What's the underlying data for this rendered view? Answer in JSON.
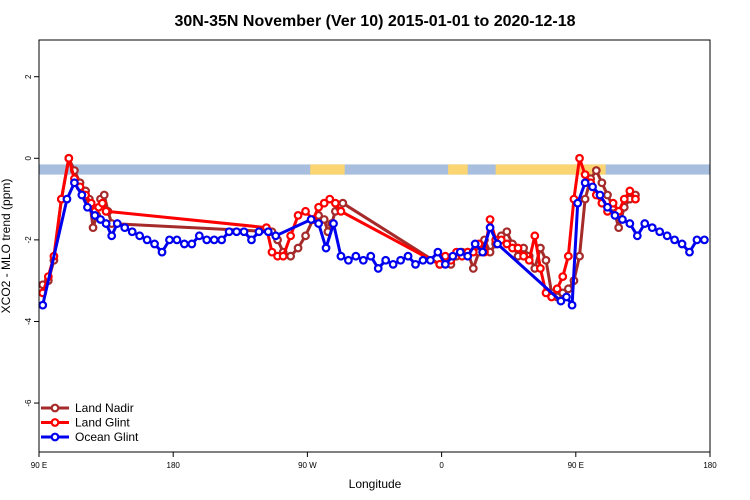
{
  "chart_data": {
    "type": "line",
    "title": "30N-35N November (Ver 10)   2015-01-01 to 2020-12-18",
    "xlabel": "Longitude",
    "ylabel": "XCO2 - MLO trend (ppm)",
    "xlim": [
      -90,
      270
    ],
    "ylim": [
      -7.2,
      2.9
    ],
    "x_ticks": [
      {
        "value": -90,
        "label": "90 E"
      },
      {
        "value": -18,
        "label": "180"
      },
      {
        "value": 54,
        "label": "90 W"
      },
      {
        "value": 126,
        "label": "0"
      },
      {
        "value": 198,
        "label": "90 E"
      },
      {
        "value": 270,
        "label": "180"
      }
    ],
    "y_ticks": [
      {
        "value": 2,
        "label": "2"
      },
      {
        "value": 0,
        "label": "0"
      },
      {
        "value": -2,
        "label": "-2"
      },
      {
        "value": -4,
        "label": "-4"
      },
      {
        "value": -6,
        "label": "-6"
      }
    ],
    "band": {
      "y_top": -0.15,
      "y_bottom": -0.4,
      "ocean_color": "#a8bedf",
      "land_color": "#fad571"
    },
    "land_segments": [
      [
        55.5,
        74
      ],
      [
        129.5,
        140
      ],
      [
        155,
        214
      ]
    ],
    "legend": {
      "position": "bottom-left"
    },
    "series": [
      {
        "name": "Land Nadir",
        "color": "#a52a2a",
        "x": [
          -88,
          -85,
          -82,
          -78,
          -74,
          -71,
          -68,
          -65,
          -63,
          -61,
          -59,
          -57,
          -55,
          -53,
          -51,
          35,
          38,
          41,
          45,
          49,
          53,
          57,
          60,
          63,
          65,
          67,
          69,
          71,
          73,
          125,
          128,
          131,
          134,
          137,
          140,
          143,
          146,
          149,
          152,
          155,
          158,
          161,
          164,
          167,
          170,
          173,
          176,
          179,
          182,
          185,
          188,
          191,
          194,
          197,
          200,
          203,
          206,
          209,
          212,
          215,
          218,
          221,
          224,
          227,
          230
        ],
        "y": [
          -3.1,
          -3.0,
          -2.5,
          -1.0,
          0.0,
          -0.3,
          -0.6,
          -0.8,
          -1.0,
          -1.7,
          -1.4,
          -1.0,
          -0.9,
          -1.3,
          -1.6,
          -1.8,
          -2.0,
          -2.3,
          -2.4,
          -2.2,
          -1.9,
          -1.5,
          -1.4,
          -1.5,
          -1.8,
          -1.6,
          -1.3,
          -1.2,
          -1.1,
          -2.6,
          -2.5,
          -2.6,
          -2.4,
          -2.3,
          -2.3,
          -2.7,
          -2.3,
          -2.0,
          -2.3,
          -2.1,
          -1.9,
          -1.8,
          -2.1,
          -2.4,
          -2.2,
          -2.4,
          -2.7,
          -2.2,
          -2.5,
          -3.3,
          -3.4,
          -3.3,
          -3.2,
          -3.0,
          -2.4,
          -1.0,
          -0.5,
          -0.3,
          -0.6,
          -0.9,
          -1.2,
          -1.7,
          -1.2,
          -1.0,
          -0.9
        ]
      },
      {
        "name": "Land Glint",
        "color": "#ff0000",
        "x": [
          -88,
          -85,
          -82,
          -78,
          -74,
          -71,
          -68,
          -65,
          -62,
          -60,
          -58,
          -56,
          -54,
          32,
          35,
          38,
          41,
          45,
          49,
          53,
          57,
          60,
          63,
          66,
          69,
          72,
          125,
          128,
          131,
          134,
          137,
          140,
          143,
          146,
          149,
          152,
          155,
          158,
          161,
          164,
          167,
          170,
          173,
          176,
          179,
          182,
          185,
          188,
          191,
          194,
          197,
          200,
          203,
          206,
          209,
          212,
          215,
          218,
          221,
          224,
          227,
          230
        ],
        "y": [
          -3.3,
          -2.9,
          -2.4,
          -1.0,
          0.0,
          -0.5,
          -0.7,
          -0.9,
          -1.1,
          -1.3,
          -1.2,
          -1.1,
          -1.3,
          -1.7,
          -2.3,
          -2.4,
          -2.4,
          -1.9,
          -1.4,
          -1.3,
          -1.5,
          -1.2,
          -1.1,
          -1.0,
          -1.1,
          -1.3,
          -2.6,
          -2.4,
          -2.5,
          -2.3,
          -2.4,
          -2.3,
          -2.3,
          -2.1,
          -2.3,
          -1.5,
          -2.0,
          -2.0,
          -2.1,
          -2.2,
          -2.2,
          -2.4,
          -2.5,
          -1.9,
          -2.7,
          -3.3,
          -3.4,
          -3.2,
          -2.9,
          -2.4,
          -1.0,
          0.0,
          -0.4,
          -0.6,
          -0.9,
          -1.1,
          -1.3,
          -1.1,
          -1.3,
          -1.0,
          -0.8,
          -1.0
        ]
      },
      {
        "name": "Ocean Glint",
        "color": "#0000ee",
        "x": [
          -88,
          -75,
          -71,
          -67,
          -64,
          -60,
          -57,
          -54,
          -51,
          -48,
          -44,
          -40,
          -36,
          -32,
          -28,
          -24,
          -20,
          -16,
          -12,
          -8,
          -4,
          0,
          4,
          8,
          12,
          16,
          20,
          24,
          28,
          33,
          37,
          56,
          60,
          64,
          68,
          72,
          76,
          80,
          84,
          88,
          92,
          96,
          100,
          104,
          108,
          112,
          116,
          120,
          124,
          128,
          132,
          136,
          140,
          144,
          148,
          152,
          156,
          190,
          193,
          196,
          199,
          203,
          207,
          211,
          215,
          219,
          223,
          227,
          231,
          235,
          239,
          243,
          247,
          251,
          255,
          259,
          263,
          267
        ],
        "y": [
          -3.6,
          -1.0,
          -0.6,
          -0.9,
          -1.2,
          -1.4,
          -1.5,
          -1.6,
          -1.9,
          -1.6,
          -1.7,
          -1.8,
          -1.9,
          -2.0,
          -2.1,
          -2.3,
          -2.0,
          -2.0,
          -2.1,
          -2.1,
          -1.9,
          -2.0,
          -2.0,
          -2.0,
          -1.8,
          -1.8,
          -1.8,
          -2.0,
          -1.8,
          -1.8,
          -1.9,
          -1.5,
          -1.6,
          -2.2,
          -1.6,
          -2.4,
          -2.5,
          -2.4,
          -2.5,
          -2.4,
          -2.7,
          -2.5,
          -2.6,
          -2.5,
          -2.4,
          -2.6,
          -2.5,
          -2.5,
          -2.3,
          -2.6,
          -2.4,
          -2.3,
          -2.4,
          -2.1,
          -2.3,
          -1.7,
          -2.1,
          -3.5,
          -3.4,
          -3.6,
          -1.1,
          -0.6,
          -0.7,
          -0.9,
          -1.2,
          -1.4,
          -1.5,
          -1.6,
          -1.9,
          -1.6,
          -1.7,
          -1.8,
          -1.9,
          -2.0,
          -2.1,
          -2.3,
          -2.0,
          -2.0
        ]
      }
    ]
  }
}
